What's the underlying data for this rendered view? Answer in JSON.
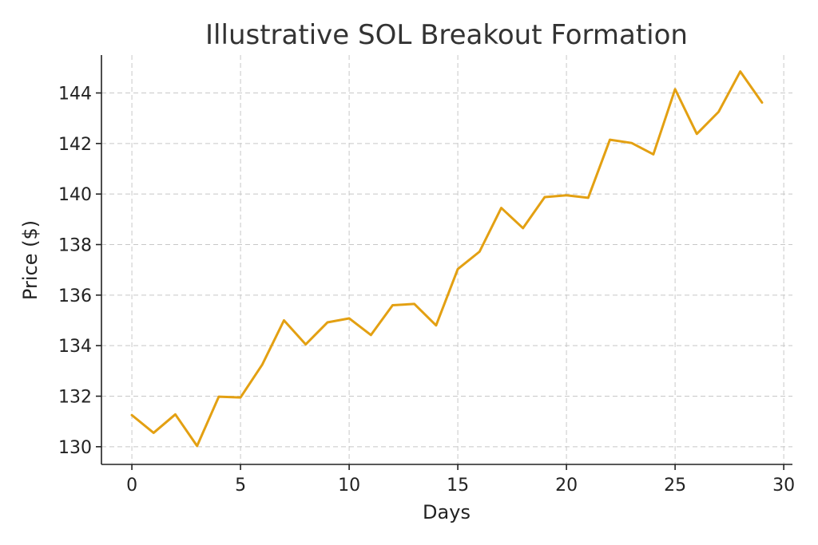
{
  "chart_data": {
    "type": "line",
    "title": "Illustrative SOL Breakout Formation",
    "xlabel": "Days",
    "ylabel": "Price ($)",
    "xlim": [
      -1.4,
      30.4
    ],
    "ylim": [
      129.3,
      145.5
    ],
    "xticks": [
      0,
      5,
      10,
      15,
      20,
      25,
      30
    ],
    "yticks": [
      130,
      132,
      134,
      136,
      138,
      140,
      142,
      144
    ],
    "grid": true,
    "series": [
      {
        "color": "#E3A012",
        "x": [
          0,
          1,
          2,
          3,
          4,
          5,
          6,
          7,
          8,
          9,
          10,
          11,
          12,
          13,
          14,
          15,
          16,
          17,
          18,
          19,
          20,
          21,
          22,
          23,
          24,
          25,
          26,
          27,
          28,
          29
        ],
        "values": [
          131.25,
          130.55,
          131.28,
          130.03,
          131.98,
          131.95,
          133.25,
          135.0,
          134.05,
          134.92,
          135.08,
          134.42,
          135.6,
          135.65,
          134.8,
          137.03,
          137.72,
          139.45,
          138.65,
          139.88,
          139.95,
          139.85,
          142.15,
          142.02,
          141.57,
          144.15,
          142.38,
          143.25,
          144.85,
          143.62
        ]
      }
    ]
  }
}
